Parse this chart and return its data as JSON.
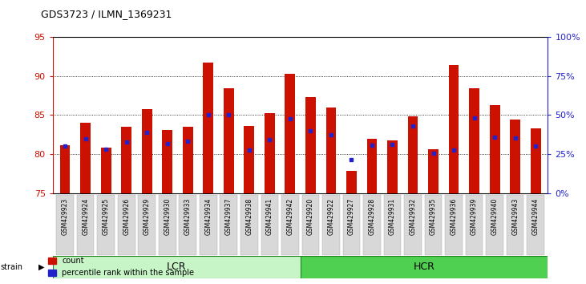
{
  "title": "GDS3723 / ILMN_1369231",
  "samples": [
    "GSM429923",
    "GSM429924",
    "GSM429925",
    "GSM429926",
    "GSM429929",
    "GSM429930",
    "GSM429933",
    "GSM429934",
    "GSM429937",
    "GSM429938",
    "GSM429941",
    "GSM429942",
    "GSM429920",
    "GSM429922",
    "GSM429927",
    "GSM429928",
    "GSM429931",
    "GSM429932",
    "GSM429935",
    "GSM429936",
    "GSM429939",
    "GSM429940",
    "GSM429943",
    "GSM429944"
  ],
  "red_values": [
    81.1,
    84.0,
    80.8,
    83.5,
    85.8,
    83.1,
    83.5,
    91.7,
    88.4,
    83.6,
    85.2,
    90.3,
    87.3,
    86.0,
    77.8,
    82.0,
    81.7,
    84.8,
    80.6,
    91.4,
    88.4,
    86.3,
    84.4,
    83.3
  ],
  "blue_values": [
    81.0,
    82.0,
    80.6,
    81.5,
    82.8,
    81.3,
    81.6,
    85.0,
    85.0,
    80.5,
    81.9,
    84.5,
    83.0,
    82.5,
    79.3,
    81.1,
    81.2,
    83.6,
    80.1,
    80.5,
    84.6,
    82.2,
    82.1,
    81.0
  ],
  "lcr_count": 12,
  "hcr_count": 12,
  "lcr_color": "#c8f5c8",
  "hcr_color": "#50d050",
  "group_edge_color": "#228822",
  "ymin": 75,
  "ymax": 95,
  "yticks": [
    75,
    80,
    85,
    90,
    95
  ],
  "right_ytick_pcts": [
    0,
    25,
    50,
    75,
    100
  ],
  "right_ylabels": [
    "0%",
    "25%",
    "50%",
    "75%",
    "100%"
  ],
  "bar_color": "#cc1100",
  "dot_color": "#2222cc",
  "plot_bg": "#ffffff",
  "tick_label_color": "#cc1100",
  "right_tick_color": "#2222cc",
  "xticklabel_bg": "#d8d8d8",
  "bar_width": 0.5
}
